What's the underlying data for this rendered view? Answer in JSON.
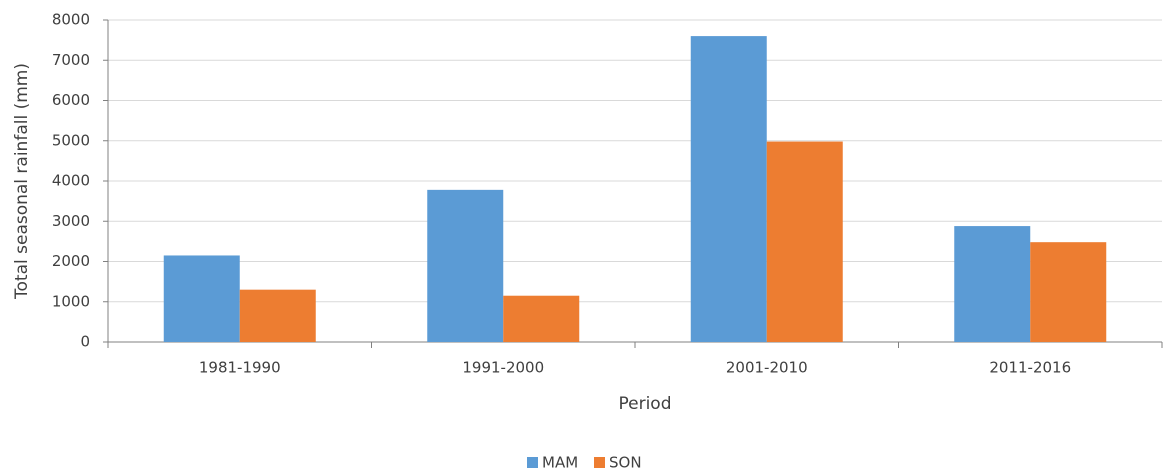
{
  "chart_data": {
    "type": "bar",
    "categories": [
      "1981-1990",
      "1991-2000",
      "2001-2010",
      "2011-2016"
    ],
    "series": [
      {
        "name": "MAM",
        "color": "#5b9bd5",
        "values": [
          2150,
          3780,
          7600,
          2880
        ]
      },
      {
        "name": "SON",
        "color": "#ed7d31",
        "values": [
          1300,
          1150,
          4980,
          2480
        ]
      }
    ],
    "xlabel": "Period",
    "ylabel": "Total seasonal rainfall (mm)",
    "ylim": [
      0,
      8000
    ],
    "yticks": [
      0,
      1000,
      2000,
      3000,
      4000,
      5000,
      6000,
      7000,
      8000
    ],
    "grid": true,
    "legend": "bottom"
  }
}
